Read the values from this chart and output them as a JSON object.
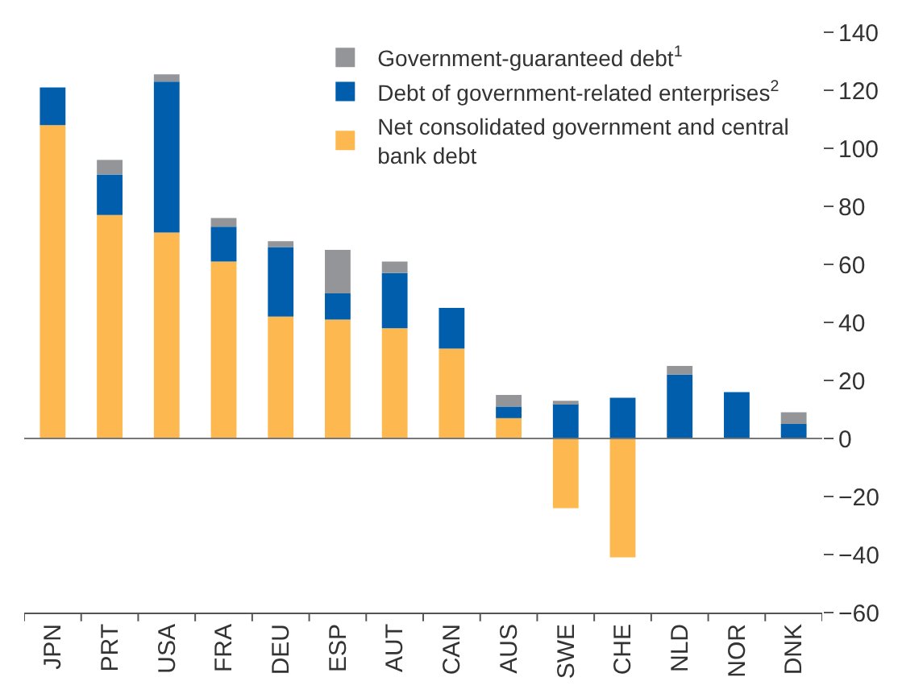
{
  "chart_data": {
    "type": "bar",
    "stacked": true,
    "categories": [
      "JPN",
      "PRT",
      "USA",
      "FRA",
      "DEU",
      "ESP",
      "AUT",
      "CAN",
      "AUS",
      "SWE",
      "CHE",
      "NLD",
      "NOR",
      "DNK"
    ],
    "series": [
      {
        "name": "Net consolidated government and central bank debt",
        "color": "#fdb94f",
        "values": [
          108,
          77,
          71,
          61,
          42,
          41,
          38,
          31,
          7,
          -24,
          -41,
          0,
          0,
          0
        ]
      },
      {
        "name": "Debt of government-related enterprises$^{2}$",
        "color": "#005ead",
        "values": [
          13,
          14,
          52,
          12,
          24,
          9,
          19,
          14,
          4,
          12,
          14,
          22,
          16,
          5
        ]
      },
      {
        "name": "Government-guaranteed debt$^{1}$",
        "color": "#939598",
        "values": [
          0,
          5,
          2.5,
          3,
          2,
          15,
          4,
          0,
          4,
          1,
          0,
          3,
          0,
          4
        ]
      }
    ],
    "ylim": [
      -60,
      140
    ],
    "yticks": [
      -60,
      -40,
      -20,
      0,
      20,
      40,
      60,
      80,
      100,
      120,
      140
    ],
    "ref_lines": [
      {
        "axis": "y",
        "value": 0,
        "color": "#777777"
      }
    ],
    "legend": "top right"
  }
}
